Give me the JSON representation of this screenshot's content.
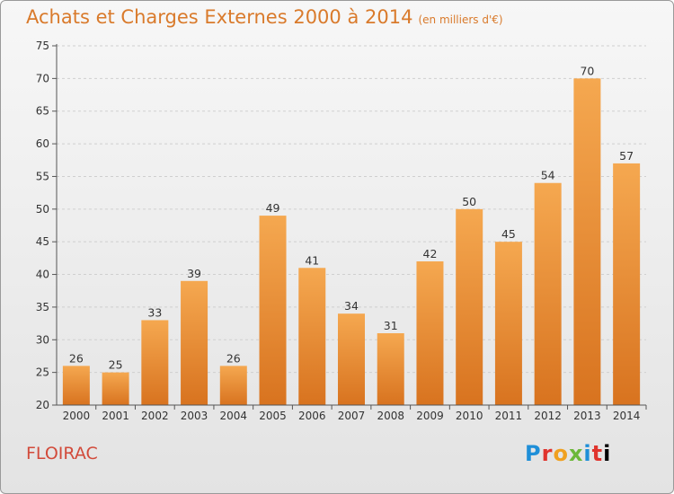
{
  "header": {
    "title": "Achats et Charges Externes 2000 à 2014",
    "unit": "(en milliers d'€)"
  },
  "footer": {
    "city": "FLOIRAC",
    "logo": "Proxiti"
  },
  "colors": {
    "bar_top": "#f5a850",
    "bar_bottom": "#d8731f",
    "title": "#d97a2b",
    "city": "#d24a3a"
  },
  "chart_data": {
    "type": "bar",
    "title": "Achats et Charges Externes 2000 à 2014",
    "subtitle": "(en milliers d'€)",
    "xlabel": "",
    "ylabel": "",
    "categories": [
      "2000",
      "2001",
      "2002",
      "2003",
      "2004",
      "2005",
      "2006",
      "2007",
      "2008",
      "2009",
      "2010",
      "2011",
      "2012",
      "2013",
      "2014"
    ],
    "values": [
      26,
      25,
      33,
      39,
      26,
      49,
      41,
      34,
      31,
      42,
      50,
      45,
      54,
      70,
      57
    ],
    "ylim": [
      20,
      75
    ],
    "yticks": [
      20,
      25,
      30,
      35,
      40,
      45,
      50,
      55,
      60,
      65,
      70,
      75
    ],
    "grid": true
  }
}
